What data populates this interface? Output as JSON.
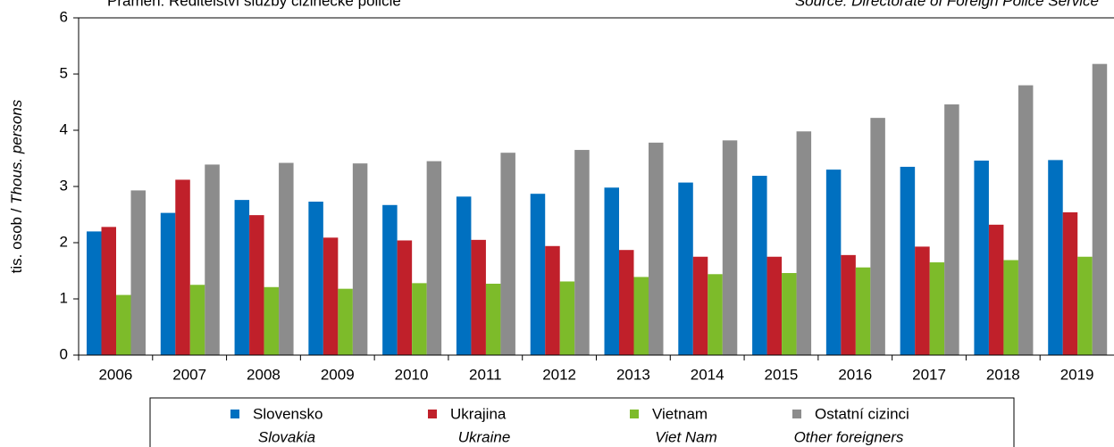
{
  "chart_data": {
    "type": "bar",
    "source_cz": "Pramen: Ředitelství služby cizinecké policie",
    "source_en": "Source: Directorate of Foreign Police Service",
    "y_label_cz": "tis. osob / ",
    "y_label_en": "Thous. persons",
    "categories": [
      "2006",
      "2007",
      "2008",
      "2009",
      "2010",
      "2011",
      "2012",
      "2013",
      "2014",
      "2015",
      "2016",
      "2017",
      "2018",
      "2019"
    ],
    "series": [
      {
        "name": "Slovensko",
        "name_en": "Slovakia",
        "color": "#0070c0",
        "values": [
          2.2,
          2.53,
          2.76,
          2.73,
          2.67,
          2.82,
          2.87,
          2.98,
          3.07,
          3.19,
          3.3,
          3.35,
          3.46,
          3.47
        ]
      },
      {
        "name": "Ukrajina",
        "name_en": "Ukraine",
        "color": "#c0202a",
        "values": [
          2.28,
          3.12,
          2.49,
          2.09,
          2.04,
          2.05,
          1.94,
          1.87,
          1.75,
          1.75,
          1.78,
          1.93,
          2.32,
          2.54
        ]
      },
      {
        "name": "Vietnam",
        "name_en": "Viet Nam",
        "color": "#7dbb2a",
        "values": [
          1.07,
          1.25,
          1.21,
          1.18,
          1.28,
          1.27,
          1.31,
          1.39,
          1.44,
          1.46,
          1.56,
          1.65,
          1.69,
          1.75
        ]
      },
      {
        "name": "Ostatní cizinci",
        "name_en": "Other foreigners",
        "color": "#8c8c8c",
        "values": [
          2.93,
          3.39,
          3.42,
          3.41,
          3.45,
          3.6,
          3.65,
          3.78,
          3.82,
          3.98,
          4.22,
          4.46,
          4.8,
          5.18
        ]
      }
    ],
    "ylim": [
      0,
      6
    ],
    "yticks": [
      0,
      1,
      2,
      3,
      4,
      5,
      6
    ],
    "grid": false
  }
}
